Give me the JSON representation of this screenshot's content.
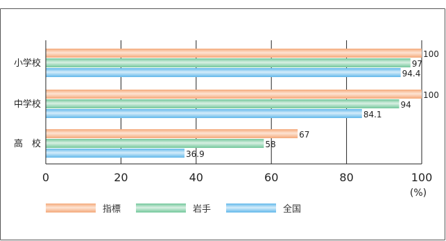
{
  "chart_data": {
    "type": "bar",
    "orientation": "horizontal",
    "categories": [
      "小学校",
      "中学校",
      "高　校"
    ],
    "series": [
      {
        "name": "指標",
        "values": [
          100,
          100,
          67
        ],
        "value_labels": [
          "100",
          "100",
          "67"
        ],
        "color": "#f4a97a",
        "highlight": "#fde3d3"
      },
      {
        "name": "岩手",
        "values": [
          97,
          94,
          58
        ],
        "value_labels": [
          "97",
          "94",
          "58"
        ],
        "color": "#72c79b",
        "highlight": "#d8f0e2"
      },
      {
        "name": "全国",
        "values": [
          94.4,
          84.1,
          36.9
        ],
        "value_labels": [
          "94.4",
          "84.1",
          "36.9"
        ],
        "color": "#62b8ea",
        "highlight": "#d4ecfa"
      }
    ],
    "xlim": [
      0,
      100
    ],
    "xticks": [
      "0",
      "20",
      "40",
      "60",
      "80",
      "100"
    ],
    "unit": "(%)",
    "grid": "vertical",
    "legend_position": "bottom"
  }
}
